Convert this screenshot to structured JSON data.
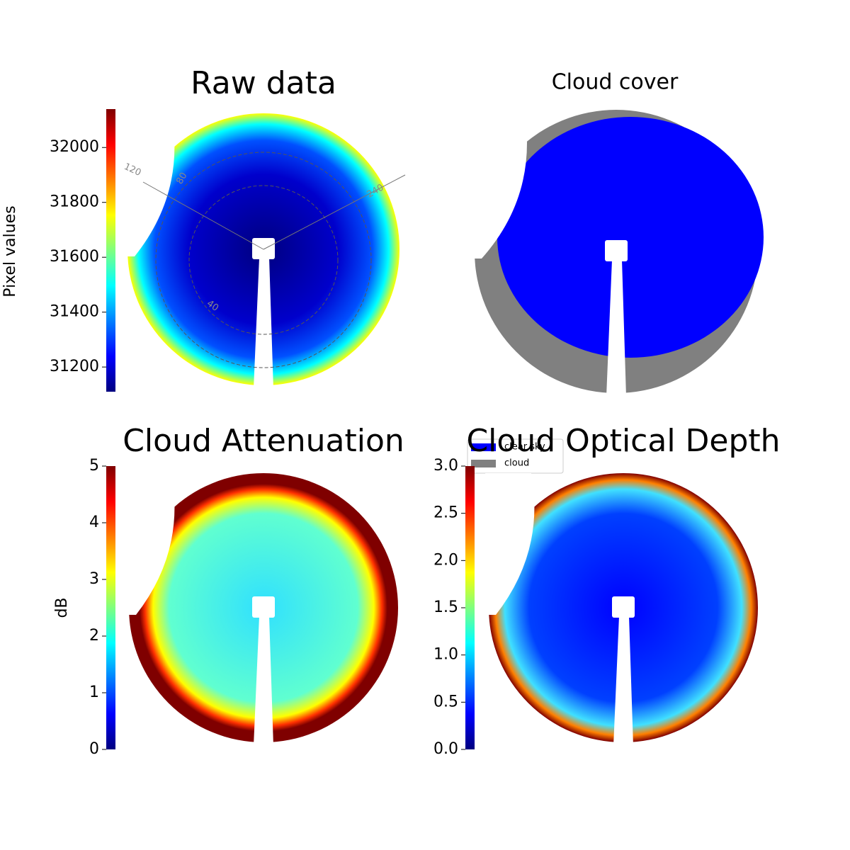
{
  "chart_data": [
    {
      "type": "image",
      "title": "Raw data",
      "colorbar_label": "Pixel values",
      "colormap": "jet",
      "ylim": [
        31110,
        32140
      ],
      "yticks": [
        31200,
        31400,
        31600,
        31800,
        32000
      ],
      "annotations": [
        "120",
        "240",
        "80",
        "40"
      ]
    },
    {
      "type": "image",
      "title": "Cloud cover",
      "legend": [
        {
          "name": "clear sky",
          "color": "#0000ff"
        },
        {
          "name": "cloud",
          "color": "#808080"
        }
      ]
    },
    {
      "type": "image",
      "title": "Cloud Attenuation",
      "colorbar_label": "dB",
      "colormap": "jet",
      "ylim": [
        0,
        5
      ],
      "yticks": [
        0,
        1,
        2,
        3,
        4,
        5
      ]
    },
    {
      "type": "image",
      "title": "Cloud Optical Depth",
      "colormap": "jet",
      "ylim": [
        0,
        3
      ],
      "yticks": [
        {
          "value": 0,
          "label": "0.0"
        },
        0.5,
        {
          "value": 1,
          "label": "1.0"
        },
        1.5,
        {
          "value": 2,
          "label": "2.0"
        },
        2.5,
        {
          "value": 3,
          "label": "3.0"
        }
      ]
    }
  ]
}
